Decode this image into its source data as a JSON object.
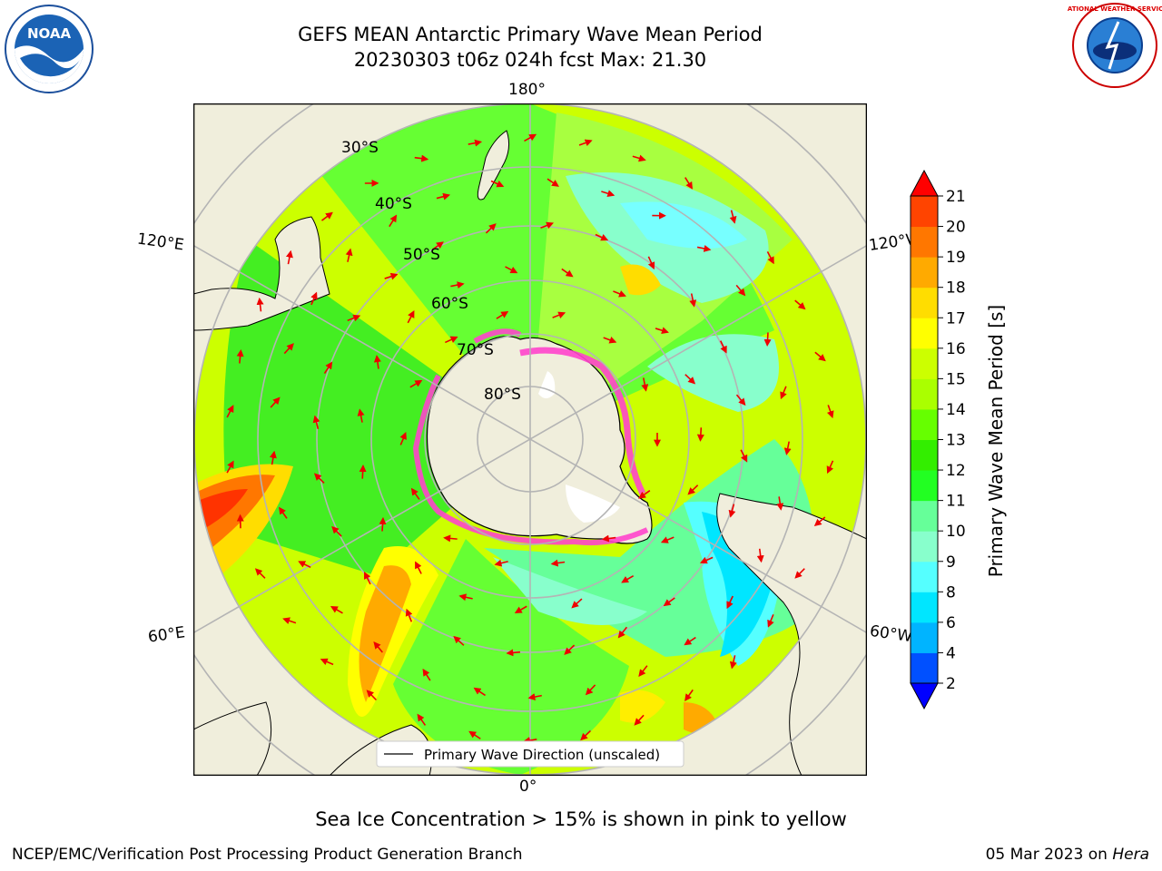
{
  "title": {
    "line1": "GEFS MEAN Antarctic Primary Wave Mean Period",
    "line2": "20230303 t06z 024h fcst   Max: 21.30"
  },
  "longitude_labels": {
    "top": "180°",
    "bottom": "0°",
    "left_upper": "120°E",
    "right_upper": "120°W",
    "left_lower": "60°E",
    "right_lower": "60°W"
  },
  "latitude_labels": [
    "30°S",
    "40°S",
    "50°S",
    "60°S",
    "70°S",
    "80°S"
  ],
  "legend": {
    "label": "Primary Wave Direction (unscaled)"
  },
  "colorbar": {
    "title": "Primary Wave Mean Period [s]",
    "ticks": [
      "2",
      "4",
      "6",
      "8",
      "9",
      "10",
      "11",
      "12",
      "13",
      "14",
      "15",
      "16",
      "17",
      "18",
      "19",
      "20",
      "21"
    ],
    "colors": [
      "#0050ff",
      "#00b4ff",
      "#00e6ff",
      "#55ffff",
      "#88ffcc",
      "#66ff99",
      "#22ff22",
      "#33ee00",
      "#66ff00",
      "#aaff00",
      "#ccff00",
      "#ffff00",
      "#ffdd00",
      "#ffaa00",
      "#ff7700",
      "#ff4400",
      "#ff1100"
    ],
    "extend_low_color": "#0000ff",
    "extend_high_color": "#ff0000"
  },
  "caption": "Sea Ice Concentration > 15% is shown in pink to yellow",
  "footer": {
    "left": "NCEP/EMC/Verification Post Processing Product Generation Branch",
    "right_prefix": "05 Mar 2023 on ",
    "right_host": "Hera"
  },
  "logos": {
    "noaa": "NOAA",
    "nws": "NATIONAL WEATHER SERVICE"
  }
}
